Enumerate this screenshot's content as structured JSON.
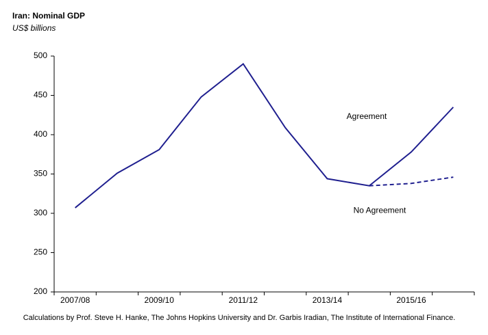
{
  "chart_data": {
    "type": "line",
    "title": "Iran: Nominal GDP",
    "subtitle": "US$ billions",
    "note": "Calculations by Prof. Steve H. Hanke, The Johns Hopkins University and Dr. Garbis Iradian, The Institute of International Finance.",
    "categories": [
      "2007/08",
      null,
      "2009/10",
      null,
      "2011/12",
      null,
      "2013/14",
      null,
      "2015/16",
      null
    ],
    "series": [
      {
        "name": "Agreement",
        "color": "#1f1f8f",
        "dash": false,
        "values": [
          307,
          351,
          381,
          448,
          490,
          409,
          344,
          335,
          378,
          435
        ]
      },
      {
        "name": "No Agreement",
        "color": "#1f1f8f",
        "dash": true,
        "values": [
          null,
          null,
          null,
          null,
          null,
          null,
          null,
          335,
          338,
          346
        ]
      }
    ],
    "ylim": [
      200,
      500
    ],
    "yticks": [
      200,
      250,
      300,
      350,
      400,
      450,
      500
    ],
    "grid": false
  }
}
